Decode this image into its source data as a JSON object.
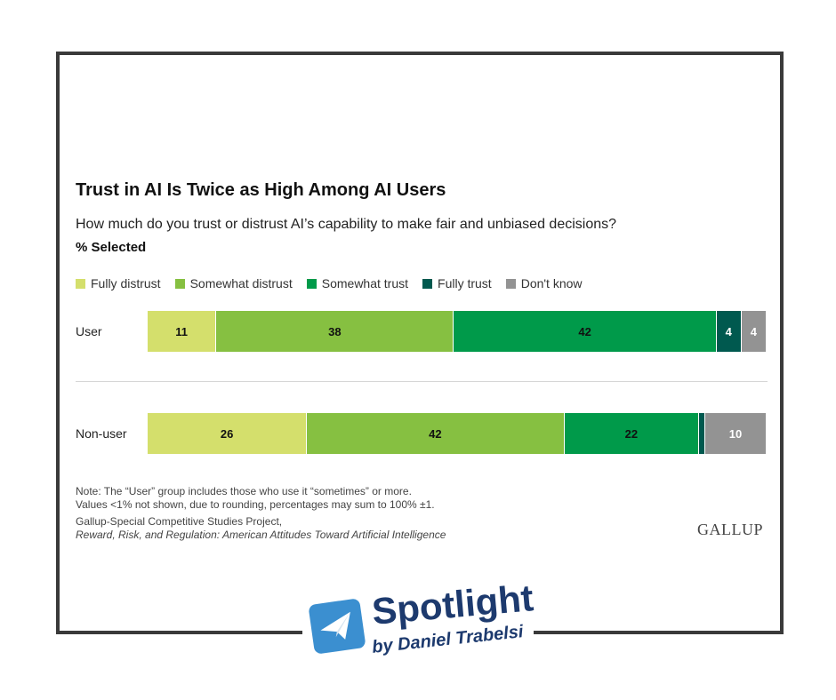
{
  "chart_data": {
    "type": "bar",
    "orientation": "horizontal-stacked",
    "title": "Trust in AI Is Twice as High Among AI Users",
    "subtitle": "How much do you trust or distrust AI’s capability to make fair and unbiased decisions?",
    "unit_label": "% Selected",
    "categories": [
      "User",
      "Non-user"
    ],
    "series": [
      {
        "name": "Fully distrust",
        "color": "#d4df6c",
        "values": [
          11,
          26
        ],
        "labels": [
          "11",
          "26"
        ],
        "label_color": "#111"
      },
      {
        "name": "Somewhat distrust",
        "color": "#86c041",
        "values": [
          38,
          42
        ],
        "labels": [
          "38",
          "42"
        ],
        "label_color": "#111"
      },
      {
        "name": "Somewhat trust",
        "color": "#009a4a",
        "values": [
          42,
          22
        ],
        "labels": [
          "42",
          "22"
        ],
        "label_color": "#111"
      },
      {
        "name": "Fully trust",
        "color": "#00594f",
        "values": [
          4,
          1
        ],
        "labels": [
          "4",
          ""
        ],
        "label_color": "#fff"
      },
      {
        "name": "Don't know",
        "color": "#939393",
        "values": [
          4,
          10
        ],
        "labels": [
          "4",
          "10"
        ],
        "label_color": "#fff"
      }
    ],
    "xlim": [
      0,
      100
    ],
    "legend_position": "top"
  },
  "notes": {
    "line1": "Note: The “User” group includes those who use it “sometimes” or more.",
    "line2": "Values <1% not shown, due to rounding, percentages may sum to 100%  ±1.",
    "source1": "Gallup-Special Competitive Studies Project,",
    "source2": "Reward, Risk, and Regulation: American Attitudes Toward Artificial Intelligence"
  },
  "brand": "GALLUP",
  "logo": {
    "title": "Spotlight",
    "byline": "by Daniel Trabelsi"
  }
}
